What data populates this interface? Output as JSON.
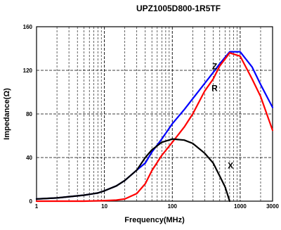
{
  "chart_data": {
    "type": "line",
    "title": "UPZ1005D800-1R5TF",
    "xlabel": "Frequency(MHz)",
    "ylabel": "Impedance(Ω)",
    "x_scale": "log",
    "xlim": [
      1,
      3000
    ],
    "ylim": [
      0,
      160
    ],
    "grid": true,
    "x_ticks": [
      1,
      10,
      100,
      1000,
      3000
    ],
    "x_tick_labels": [
      "1",
      "10",
      "100",
      "1000",
      "3000"
    ],
    "y_ticks": [
      0,
      40,
      80,
      120,
      160
    ],
    "y_tick_labels": [
      "0",
      "40",
      "80",
      "120",
      "160"
    ],
    "series": [
      {
        "name": "Z",
        "color": "#0000ff",
        "x": [
          1,
          2,
          5,
          8,
          10,
          15,
          20,
          30,
          40,
          50,
          70,
          100,
          150,
          200,
          300,
          400,
          500,
          700,
          1000,
          1500,
          2000,
          3000
        ],
        "y": [
          2,
          3,
          5.5,
          7.5,
          9.5,
          14,
          19,
          28.5,
          35,
          45,
          57,
          71,
          84,
          94,
          108,
          118,
          126,
          137,
          137,
          123,
          107,
          86
        ]
      },
      {
        "name": "R",
        "color": "#ff0000",
        "x": [
          1,
          5,
          10,
          15,
          20,
          30,
          40,
          50,
          70,
          100,
          150,
          200,
          300,
          400,
          500,
          700,
          1000,
          1500,
          2000,
          3000
        ],
        "y": [
          0,
          0,
          0.5,
          1,
          2,
          7,
          16,
          28,
          42,
          54,
          68,
          80,
          101,
          112,
          124,
          136,
          133,
          112,
          96,
          65
        ]
      },
      {
        "name": "X",
        "color": "#000000",
        "x": [
          1,
          2,
          5,
          8,
          10,
          15,
          20,
          30,
          40,
          50,
          70,
          100,
          150,
          200,
          300,
          400,
          500,
          600,
          700
        ],
        "y": [
          2,
          3,
          5.5,
          7.5,
          9.5,
          14,
          19,
          28.5,
          40,
          47,
          54,
          57,
          56,
          53,
          44,
          35,
          23,
          13,
          0
        ]
      }
    ],
    "series_labels": [
      {
        "text": "Z",
        "x": 420,
        "y": 121
      },
      {
        "text": "R",
        "x": 420,
        "y": 101
      },
      {
        "text": "X",
        "x": 720,
        "y": 30
      }
    ]
  }
}
